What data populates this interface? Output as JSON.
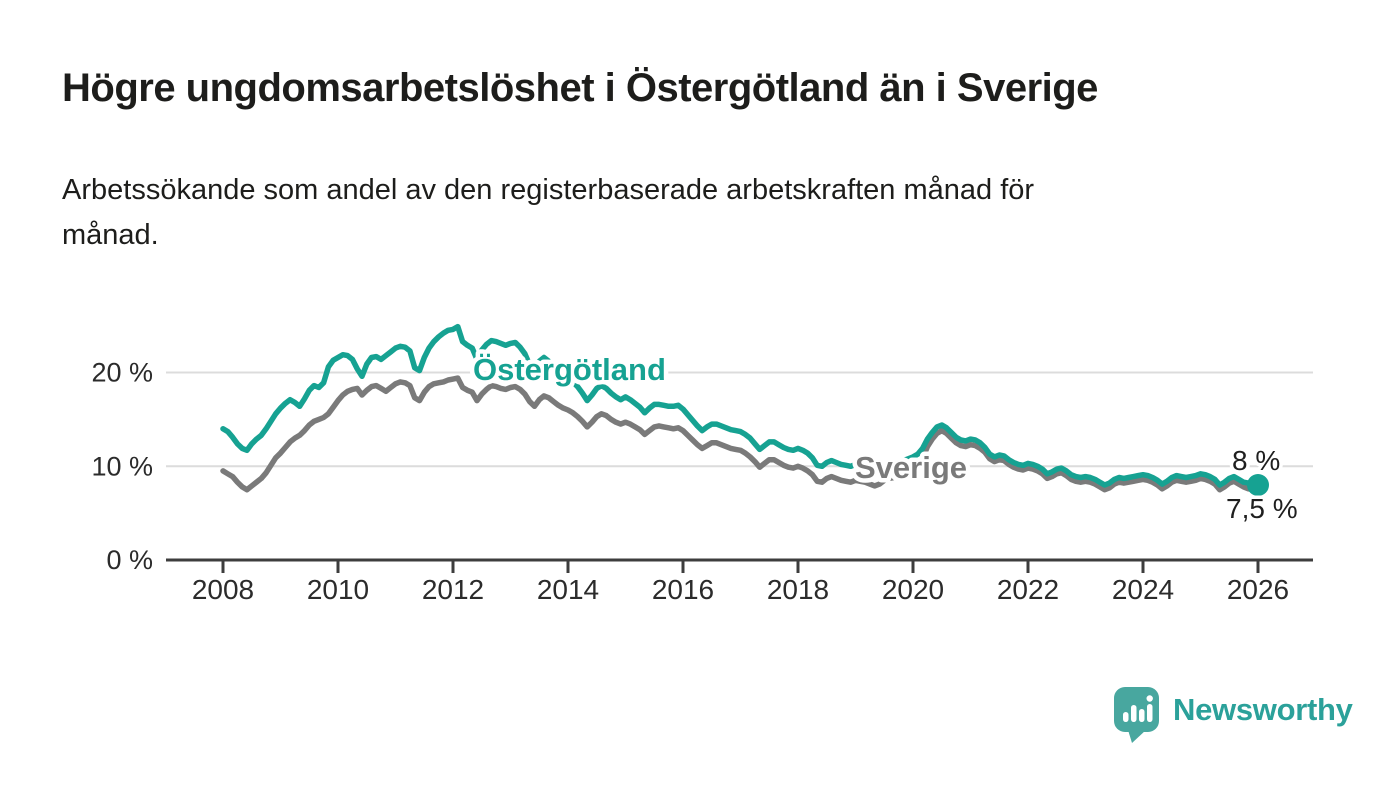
{
  "header": {
    "title": "Högre ungdomsarbetslöshet i Östergötland än i Sverige",
    "subtitle_line1": "Arbetssökande som andel av den registerbaserade arbetskraften månad för",
    "subtitle_line2": "månad."
  },
  "colors": {
    "ostergotland_line": "#16a292",
    "sverige_line": "#7a7a7a",
    "gridline": "#dcdcdc",
    "axis": "#3d3d3d",
    "text": "#1d1d1b",
    "logo_icon": "#48a79f",
    "logo_text": "#2ba19a"
  },
  "chart_data": {
    "type": "line",
    "unit": "%",
    "x_start_year": 2008,
    "points_per_year": 12,
    "x_end_label": "jan 2026",
    "ylim": [
      0,
      26
    ],
    "grid": "horizontal-only",
    "x_ticks": [
      2008,
      2010,
      2012,
      2014,
      2016,
      2018,
      2020,
      2022,
      2024,
      2026
    ],
    "y_ticks": [
      {
        "value": 20,
        "label": "20 %"
      },
      {
        "value": 10,
        "label": "10 %"
      },
      {
        "value": 0,
        "label": "0 %"
      }
    ],
    "series_labels": {
      "ostergotland": "Östergötland",
      "sverige": "Sverige"
    },
    "end_labels": {
      "ostergotland": "8 %",
      "sverige": "7,5 %"
    },
    "series": [
      {
        "name": "Sverige",
        "color": "#7a7a7a",
        "final_value": 7.5,
        "values": [
          9.5,
          9.2,
          8.9,
          8.3,
          7.8,
          7.5,
          7.9,
          8.3,
          8.7,
          9.3,
          10.1,
          10.9,
          11.4,
          12.0,
          12.6,
          13.0,
          13.3,
          13.8,
          14.4,
          14.8,
          15.0,
          15.2,
          15.6,
          16.3,
          17.0,
          17.6,
          18.0,
          18.2,
          18.3,
          17.6,
          18.1,
          18.5,
          18.6,
          18.3,
          18.0,
          18.4,
          18.8,
          19.0,
          18.9,
          18.6,
          17.3,
          17.0,
          17.9,
          18.5,
          18.8,
          18.9,
          19.0,
          19.2,
          19.3,
          19.4,
          18.4,
          18.1,
          17.9,
          17.0,
          17.7,
          18.2,
          18.6,
          18.5,
          18.3,
          18.2,
          18.4,
          18.5,
          18.2,
          17.7,
          16.9,
          16.4,
          17.1,
          17.5,
          17.3,
          16.9,
          16.5,
          16.2,
          16.0,
          15.7,
          15.3,
          14.8,
          14.2,
          14.7,
          15.3,
          15.6,
          15.4,
          15.0,
          14.7,
          14.5,
          14.7,
          14.5,
          14.2,
          13.9,
          13.4,
          13.8,
          14.2,
          14.3,
          14.2,
          14.1,
          14.0,
          14.1,
          13.8,
          13.3,
          12.8,
          12.3,
          11.9,
          12.2,
          12.5,
          12.5,
          12.3,
          12.1,
          11.9,
          11.8,
          11.7,
          11.4,
          11.0,
          10.5,
          9.9,
          10.3,
          10.7,
          10.7,
          10.4,
          10.1,
          9.9,
          9.8,
          10.0,
          9.8,
          9.5,
          9.1,
          8.4,
          8.3,
          8.7,
          8.9,
          8.7,
          8.5,
          8.4,
          8.3,
          8.5,
          8.4,
          8.3,
          8.1,
          7.9,
          8.1,
          8.5,
          8.7,
          8.8,
          8.9,
          9.1,
          9.4,
          9.7,
          10.0,
          10.8,
          12.1,
          12.9,
          13.5,
          13.8,
          13.5,
          13.0,
          12.5,
          12.2,
          12.1,
          12.3,
          12.2,
          11.9,
          11.5,
          10.8,
          10.5,
          10.7,
          10.6,
          10.2,
          9.9,
          9.7,
          9.6,
          9.8,
          9.7,
          9.5,
          9.2,
          8.7,
          8.9,
          9.2,
          9.3,
          9.0,
          8.6,
          8.4,
          8.3,
          8.4,
          8.3,
          8.1,
          7.8,
          7.5,
          7.7,
          8.1,
          8.3,
          8.2,
          8.3,
          8.4,
          8.5,
          8.6,
          8.5,
          8.3,
          8.0,
          7.6,
          7.9,
          8.3,
          8.5,
          8.4,
          8.3,
          8.4,
          8.5,
          8.7,
          8.6,
          8.4,
          8.1,
          7.5,
          7.8,
          8.2,
          8.4,
          8.1,
          7.8,
          7.6,
          7.5,
          7.5
        ]
      },
      {
        "name": "Östergötland",
        "color": "#16a292",
        "final_value": 8.0,
        "values": [
          14.0,
          13.7,
          13.1,
          12.4,
          11.9,
          11.7,
          12.4,
          12.9,
          13.3,
          14.0,
          14.8,
          15.6,
          16.2,
          16.7,
          17.1,
          16.8,
          16.4,
          17.2,
          18.1,
          18.6,
          18.4,
          18.9,
          20.6,
          21.3,
          21.6,
          21.9,
          21.8,
          21.4,
          20.4,
          19.6,
          20.9,
          21.6,
          21.7,
          21.4,
          21.8,
          22.2,
          22.6,
          22.8,
          22.7,
          22.3,
          20.5,
          20.2,
          21.6,
          22.6,
          23.3,
          23.8,
          24.2,
          24.5,
          24.6,
          24.9,
          23.3,
          22.9,
          22.6,
          21.4,
          22.4,
          23.0,
          23.4,
          23.3,
          23.1,
          22.9,
          23.1,
          23.2,
          22.7,
          22.0,
          20.8,
          20.2,
          21.2,
          21.6,
          21.2,
          20.6,
          20.0,
          19.6,
          19.3,
          19.0,
          18.5,
          17.8,
          17.0,
          17.6,
          18.3,
          18.6,
          18.3,
          17.8,
          17.4,
          17.1,
          17.4,
          17.1,
          16.7,
          16.3,
          15.7,
          16.2,
          16.6,
          16.6,
          16.5,
          16.4,
          16.4,
          16.5,
          16.1,
          15.5,
          14.9,
          14.3,
          13.8,
          14.2,
          14.5,
          14.5,
          14.3,
          14.1,
          13.9,
          13.8,
          13.7,
          13.4,
          13.0,
          12.4,
          11.8,
          12.2,
          12.6,
          12.6,
          12.3,
          12.0,
          11.8,
          11.7,
          11.9,
          11.7,
          11.4,
          10.9,
          10.1,
          10.0,
          10.4,
          10.6,
          10.4,
          10.2,
          10.1,
          10.0,
          10.2,
          10.1,
          10.0,
          9.8,
          9.4,
          9.6,
          10.0,
          10.2,
          10.3,
          10.4,
          10.6,
          10.8,
          11.0,
          11.3,
          11.9,
          12.9,
          13.6,
          14.2,
          14.4,
          14.1,
          13.6,
          13.1,
          12.8,
          12.7,
          12.9,
          12.8,
          12.5,
          12.0,
          11.3,
          11.0,
          11.2,
          11.1,
          10.7,
          10.4,
          10.2,
          10.1,
          10.3,
          10.2,
          10.0,
          9.7,
          9.2,
          9.4,
          9.7,
          9.8,
          9.5,
          9.1,
          8.9,
          8.8,
          8.9,
          8.8,
          8.6,
          8.3,
          8.0,
          8.2,
          8.6,
          8.8,
          8.7,
          8.8,
          8.9,
          9.0,
          9.1,
          9.0,
          8.8,
          8.5,
          8.1,
          8.4,
          8.8,
          9.0,
          8.9,
          8.8,
          8.9,
          9.0,
          9.2,
          9.1,
          8.9,
          8.6,
          8.0,
          8.3,
          8.7,
          8.9,
          8.6,
          8.3,
          8.2,
          8.1,
          8.0
        ]
      }
    ]
  },
  "footer": {
    "brand": "Newsworthy",
    "logo_icon": "bar-chart-speech-bubble-icon"
  }
}
